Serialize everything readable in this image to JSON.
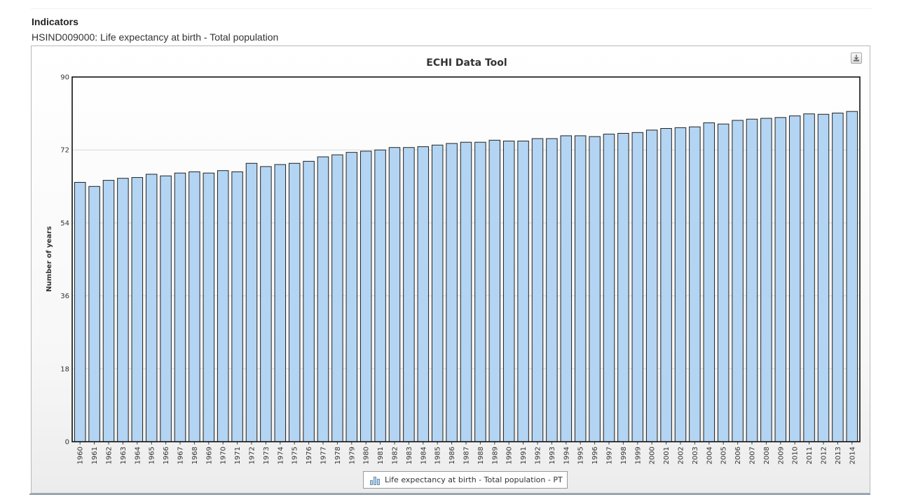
{
  "header": {
    "section_title": "Indicators",
    "indicator": "HSIND009000: Life expectancy at birth - Total population"
  },
  "toolbar": {
    "export_icon": "download-icon"
  },
  "colors": {
    "bar_fill": "#b3d5f3",
    "bar_stroke": "#222222",
    "grid": "#d8d8d8"
  },
  "chart_data": {
    "type": "bar",
    "title": "ECHI Data Tool",
    "ylabel": "Number of years",
    "xlabel": "",
    "ylim": [
      0,
      90
    ],
    "yticks": [
      0,
      18,
      36,
      54,
      72,
      90
    ],
    "grid": true,
    "legend_position": "bottom-center",
    "categories": [
      "1960",
      "1961",
      "1962",
      "1963",
      "1964",
      "1965",
      "1966",
      "1967",
      "1968",
      "1969",
      "1970",
      "1971",
      "1972",
      "1973",
      "1974",
      "1975",
      "1976",
      "1977",
      "1978",
      "1979",
      "1980",
      "1981",
      "1982",
      "1983",
      "1984",
      "1985",
      "1986",
      "1987",
      "1988",
      "1989",
      "1990",
      "1991",
      "1992",
      "1993",
      "1994",
      "1995",
      "1996",
      "1997",
      "1998",
      "1999",
      "2000",
      "2001",
      "2002",
      "2003",
      "2004",
      "2005",
      "2006",
      "2007",
      "2008",
      "2009",
      "2010",
      "2011",
      "2012",
      "2013",
      "2014"
    ],
    "series": [
      {
        "name": "Life expectancy at birth - Total population - PT",
        "values": [
          64.0,
          63.0,
          64.5,
          65.0,
          65.2,
          66.0,
          65.6,
          66.3,
          66.6,
          66.3,
          66.9,
          66.6,
          68.7,
          67.9,
          68.4,
          68.7,
          69.2,
          70.3,
          70.8,
          71.4,
          71.7,
          72.0,
          72.6,
          72.6,
          72.8,
          73.2,
          73.6,
          73.9,
          73.9,
          74.4,
          74.2,
          74.2,
          74.8,
          74.8,
          75.5,
          75.5,
          75.3,
          75.9,
          76.1,
          76.3,
          76.9,
          77.3,
          77.5,
          77.7,
          78.7,
          78.4,
          79.3,
          79.6,
          79.8,
          80.0,
          80.4,
          80.9,
          80.8,
          81.1,
          81.5
        ]
      }
    ]
  }
}
